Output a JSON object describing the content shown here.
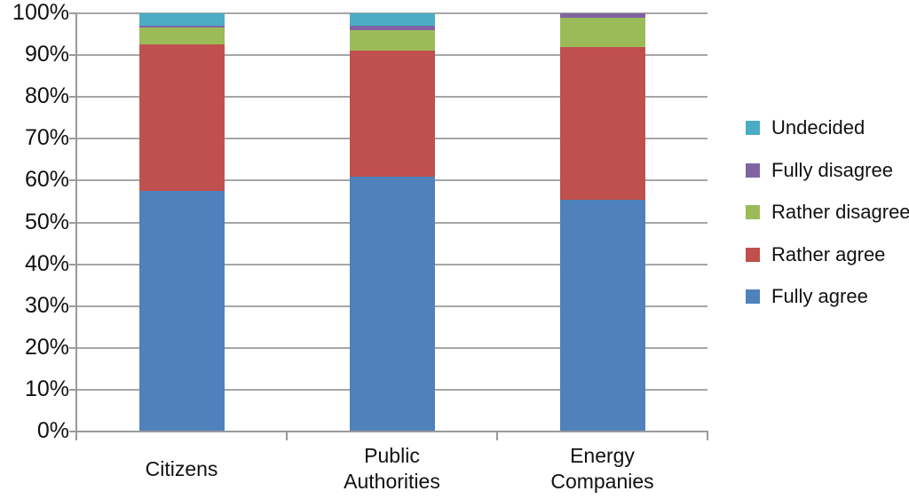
{
  "chart_data": {
    "type": "bar",
    "subtype": "stacked-100-percent-column",
    "title": "",
    "xlabel": "",
    "ylabel": "",
    "ylim": [
      0,
      100
    ],
    "grid": true,
    "legend_position": "right",
    "y_tick_labels": [
      "0%",
      "10%",
      "20%",
      "30%",
      "40%",
      "50%",
      "60%",
      "70%",
      "80%",
      "90%",
      "100%"
    ],
    "y_tick_values": [
      0,
      10,
      20,
      30,
      40,
      50,
      60,
      70,
      80,
      90,
      100
    ],
    "categories": [
      "Citizens",
      "Public Authorities",
      "Energy Companies"
    ],
    "category_label_lines": [
      [
        "Citizens"
      ],
      [
        "Public",
        "Authorities"
      ],
      [
        "Energy",
        "Companies"
      ]
    ],
    "series": [
      {
        "name": "Fully agree",
        "color": "#4F81BD",
        "values": [
          57.5,
          61.0,
          55.5
        ]
      },
      {
        "name": "Rather agree",
        "color": "#C0504D",
        "values": [
          35.0,
          30.0,
          36.5
        ]
      },
      {
        "name": "Rather disagree",
        "color": "#9BBB59",
        "values": [
          4.0,
          5.0,
          7.0
        ]
      },
      {
        "name": "Fully disagree",
        "color": "#8064A2",
        "values": [
          0.5,
          1.0,
          1.0
        ]
      },
      {
        "name": "Undecided",
        "color": "#4BACC6",
        "values": [
          3.0,
          3.0,
          0.0
        ]
      }
    ],
    "legend_entries": [
      "Undecided",
      "Fully disagree",
      "Rather disagree",
      "Rather agree",
      "Fully agree"
    ],
    "legend_note": "legend listed top-to-bottom, reverse of stacking order"
  },
  "colors": {
    "background": "#ffffff",
    "gridline": "#a6a6a6",
    "axis": "#9a9a9a",
    "text": "#111111"
  }
}
